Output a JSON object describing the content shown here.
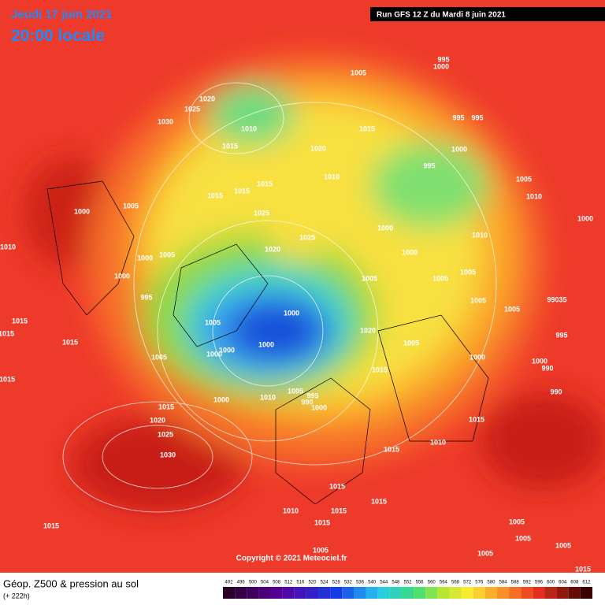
{
  "header": {
    "date": "Jeudi 17 juin 2021",
    "time": "20:00 locale",
    "run": "Run GFS 12 Z du Mardi 8 juin 2021"
  },
  "isobar_labels": [
    "1005",
    "995",
    "1000",
    "1020",
    "1025",
    "1030",
    "1010",
    "1015",
    "995",
    "995",
    "1015",
    "1020",
    "1000",
    "995",
    "1010",
    "1015",
    "1015",
    "1015",
    "1005",
    "1000",
    "1025",
    "1005",
    "1010",
    "1000",
    "1000",
    "1025",
    "1010",
    "1000",
    "1020",
    "1010",
    "1000",
    "1005",
    "1000",
    "1005",
    "1005",
    "1005",
    "995",
    "1005",
    "99035",
    "1000",
    "1005",
    "1005",
    "1015",
    "1015",
    "1015",
    "1020",
    "1000",
    "1000",
    "1000",
    "1005",
    "995",
    "1005",
    "1000",
    "1000",
    "990",
    "1015",
    "1015",
    "1005",
    "995",
    "990",
    "1000",
    "1010",
    "1000",
    "990",
    "1015",
    "1020",
    "1025",
    "1015",
    "1010",
    "1030",
    "1015",
    "1015",
    "1015",
    "1015",
    "1010",
    "1015",
    "1015",
    "1005",
    "1005",
    "1005",
    "1005",
    "1005",
    "1015"
  ],
  "copyright": "Copyright © 2021 Meteociel.fr",
  "legend": {
    "title": "Géop. Z500 & pression au sol",
    "subtitle": "(+ 222h)",
    "scale": [
      492,
      496,
      500,
      504,
      508,
      512,
      516,
      520,
      524,
      528,
      532,
      536,
      540,
      544,
      548,
      552,
      556,
      560,
      564,
      568,
      572,
      576,
      580,
      584,
      588,
      592,
      596,
      600,
      604,
      608,
      612
    ]
  }
}
